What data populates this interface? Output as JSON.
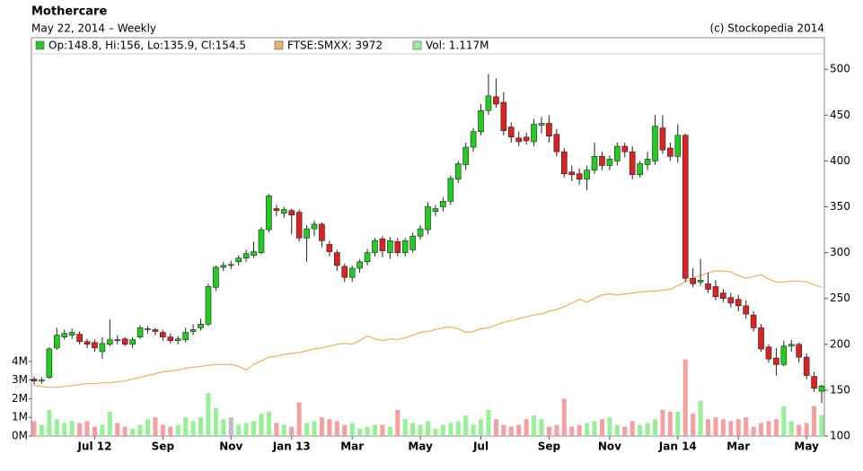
{
  "chart_data": {
    "type": "candlestick",
    "title": "Mothercare",
    "subtitle": "May 22, 2014 – Weekly",
    "source": "(c) Stockopedia 2014",
    "categories": [
      null,
      null,
      null,
      null,
      null,
      null,
      null,
      null,
      "Jul 12",
      null,
      null,
      null,
      null,
      null,
      null,
      null,
      null,
      "Sep",
      null,
      null,
      null,
      null,
      null,
      null,
      null,
      null,
      "Nov",
      null,
      null,
      null,
      null,
      null,
      null,
      null,
      "Jan 13",
      null,
      null,
      null,
      null,
      null,
      null,
      null,
      "Mar",
      null,
      null,
      null,
      null,
      null,
      null,
      null,
      null,
      "May",
      null,
      null,
      null,
      null,
      null,
      null,
      null,
      "Jul",
      null,
      null,
      null,
      null,
      null,
      null,
      null,
      null,
      "Sep",
      null,
      null,
      null,
      null,
      null,
      null,
      null,
      "Nov",
      null,
      null,
      null,
      null,
      null,
      null,
      null,
      null,
      "Jan 14",
      null,
      null,
      null,
      null,
      null,
      null,
      null,
      "Mar",
      null,
      null,
      null,
      null,
      null,
      null,
      null,
      null,
      "May",
      null,
      null
    ],
    "series": [
      {
        "name": "Op:148.8, Hi:156, Lo:135.9, Cl:154.5",
        "color": "#22cc22",
        "down_color": "#dd2222",
        "open": [
          162,
          160,
          164,
          196,
          208,
          210,
          211,
          203,
          202,
          192,
          200,
          205,
          206,
          200,
          208,
          216,
          216,
          213,
          208,
          204,
          205,
          214,
          218,
          222,
          262,
          284,
          287,
          290,
          294,
          297,
          300,
          325,
          348,
          343,
          346,
          344,
          316,
          326,
          331,
          309,
          300,
          285,
          273,
          283,
          290,
          300,
          315,
          300,
          312,
          300,
          303,
          318,
          325,
          345,
          350,
          356,
          380,
          396,
          415,
          432,
          455,
          470,
          464,
          437,
          425,
          426,
          421,
          439,
          441,
          429,
          410,
          388,
          386,
          380,
          390,
          405,
          395,
          400,
          416,
          410,
          385,
          396,
          400,
          436,
          414,
          405,
          428,
          272,
          268,
          266,
          263,
          256,
          251,
          249,
          242,
          232,
          218,
          197,
          185,
          178,
          198,
          200,
          186,
          165,
          148.8
        ],
        "high": [
          165,
          164,
          197,
          218,
          216,
          217,
          214,
          206,
          205,
          208,
          227,
          210,
          208,
          208,
          221,
          220,
          218,
          216,
          212,
          209,
          218,
          222,
          228,
          266,
          286,
          290,
          291,
          297,
          303,
          312,
          328,
          364,
          352,
          350,
          348,
          347,
          330,
          335,
          333,
          313,
          303,
          288,
          286,
          293,
          304,
          316,
          318,
          317,
          316,
          316,
          322,
          330,
          355,
          352,
          360,
          384,
          400,
          420,
          436,
          462,
          495,
          490,
          475,
          442,
          432,
          431,
          446,
          448,
          450,
          435,
          414,
          395,
          392,
          395,
          420,
          410,
          406,
          420,
          420,
          416,
          400,
          410,
          450,
          450,
          420,
          440,
          430,
          283,
          293,
          278,
          270,
          260,
          256,
          254,
          248,
          236,
          222,
          200,
          196,
          204,
          205,
          202,
          190,
          170,
          156
        ],
        "low": [
          156,
          157,
          162,
          194,
          205,
          206,
          200,
          196,
          192,
          184,
          198,
          200,
          198,
          196,
          206,
          212,
          210,
          204,
          201,
          200,
          202,
          210,
          215,
          220,
          258,
          280,
          282,
          286,
          290,
          294,
          298,
          322,
          340,
          338,
          320,
          312,
          290,
          318,
          306,
          296,
          280,
          268,
          268,
          278,
          286,
          296,
          295,
          293,
          296,
          296,
          300,
          314,
          320,
          340,
          345,
          352,
          376,
          390,
          410,
          428,
          450,
          458,
          428,
          420,
          416,
          418,
          416,
          430,
          420,
          405,
          382,
          378,
          374,
          368,
          386,
          390,
          390,
          395,
          404,
          380,
          382,
          390,
          396,
          408,
          400,
          398,
          268,
          262,
          264,
          256,
          248,
          246,
          240,
          236,
          228,
          214,
          192,
          180,
          166,
          176,
          192,
          180,
          162,
          148,
          135.9
        ],
        "close": [
          160,
          161,
          195,
          210,
          212,
          213,
          203,
          200,
          196,
          201,
          205,
          204,
          200,
          205,
          218,
          217,
          214,
          208,
          204,
          206,
          213,
          216,
          222,
          263,
          284,
          286,
          287,
          294,
          299,
          301,
          325,
          362,
          346,
          347,
          341,
          316,
          326,
          331,
          313,
          301,
          286,
          273,
          283,
          290,
          300,
          313,
          302,
          313,
          300,
          313,
          318,
          326,
          350,
          348,
          356,
          381,
          397,
          415,
          432,
          455,
          471,
          462,
          433,
          426,
          421,
          422,
          440,
          441,
          427,
          410,
          386,
          385,
          380,
          390,
          405,
          395,
          402,
          416,
          410,
          385,
          397,
          402,
          438,
          412,
          405,
          428,
          272,
          266,
          270,
          260,
          252,
          250,
          245,
          242,
          233,
          218,
          195,
          184,
          178,
          198,
          200,
          186,
          166,
          152,
          154.5
        ]
      },
      {
        "name": "FTSE:SMXX: 3972",
        "color": "#e8b060",
        "values": [
          155,
          154,
          153,
          153,
          154,
          155,
          156,
          157,
          157,
          158,
          158,
          159,
          160,
          162,
          164,
          166,
          168,
          170,
          171,
          172,
          174,
          175,
          176,
          177,
          178,
          178,
          178,
          176,
          172,
          178,
          182,
          186,
          187,
          189,
          190,
          191,
          193,
          195,
          196,
          198,
          200,
          201,
          200,
          204,
          209,
          206,
          204,
          206,
          205,
          207,
          210,
          213,
          214,
          216,
          218,
          219,
          217,
          213,
          214,
          217,
          218,
          221,
          224,
          226,
          228,
          230,
          232,
          233,
          236,
          238,
          241,
          245,
          249,
          246,
          250,
          254,
          255,
          254,
          255,
          256,
          257,
          258,
          258,
          259,
          260,
          264,
          268,
          272,
          275,
          278,
          280,
          280,
          279,
          275,
          272,
          274,
          276,
          271,
          268,
          268,
          269,
          269,
          268,
          265,
          262
        ]
      },
      {
        "name": "Vol: 1.117M",
        "color": "#99ee99",
        "down_color": "#f4a0a0",
        "flat_color": "#bbbbbb",
        "axis": "y2",
        "values": [
          0.8,
          0.6,
          1.4,
          0.9,
          0.7,
          0.8,
          0.7,
          0.8,
          0.5,
          0.6,
          1.3,
          0.7,
          0.5,
          0.4,
          0.6,
          0.9,
          1.0,
          0.6,
          0.5,
          0.6,
          1.0,
          0.8,
          1.0,
          2.3,
          1.5,
          0.9,
          1.0,
          0.6,
          0.7,
          0.8,
          1.2,
          1.3,
          0.7,
          0.6,
          0.5,
          1.8,
          0.7,
          0.8,
          1.0,
          0.9,
          0.8,
          0.6,
          0.7,
          0.4,
          0.5,
          0.6,
          0.6,
          0.5,
          1.4,
          0.9,
          0.7,
          0.6,
          0.8,
          0.4,
          0.6,
          0.7,
          0.8,
          1.1,
          0.6,
          0.9,
          1.4,
          0.9,
          0.6,
          0.5,
          0.6,
          0.9,
          1.1,
          0.9,
          0.5,
          0.6,
          2.0,
          0.5,
          0.6,
          0.7,
          0.8,
          0.9,
          1.0,
          0.6,
          0.5,
          0.8,
          0.6,
          0.7,
          0.9,
          1.4,
          1.3,
          1.3,
          4.1,
          1.2,
          1.9,
          0.9,
          1.0,
          0.9,
          0.8,
          0.9,
          1.0,
          0.5,
          0.7,
          0.8,
          0.9,
          1.6,
          0.8,
          0.6,
          0.7,
          1.6,
          1.117
        ]
      }
    ],
    "ylim": [
      100,
      509
    ],
    "yticks": [
      100,
      150,
      200,
      250,
      300,
      350,
      400,
      450,
      500
    ],
    "y2lim": [
      0,
      20.1
    ],
    "y2ticks": [
      {
        "value": 0,
        "label": "0M"
      },
      {
        "value": 1,
        "label": "1M"
      },
      {
        "value": 2,
        "label": "2M"
      },
      {
        "value": 3,
        "label": "3M"
      },
      {
        "value": 4,
        "label": "4M"
      }
    ]
  }
}
